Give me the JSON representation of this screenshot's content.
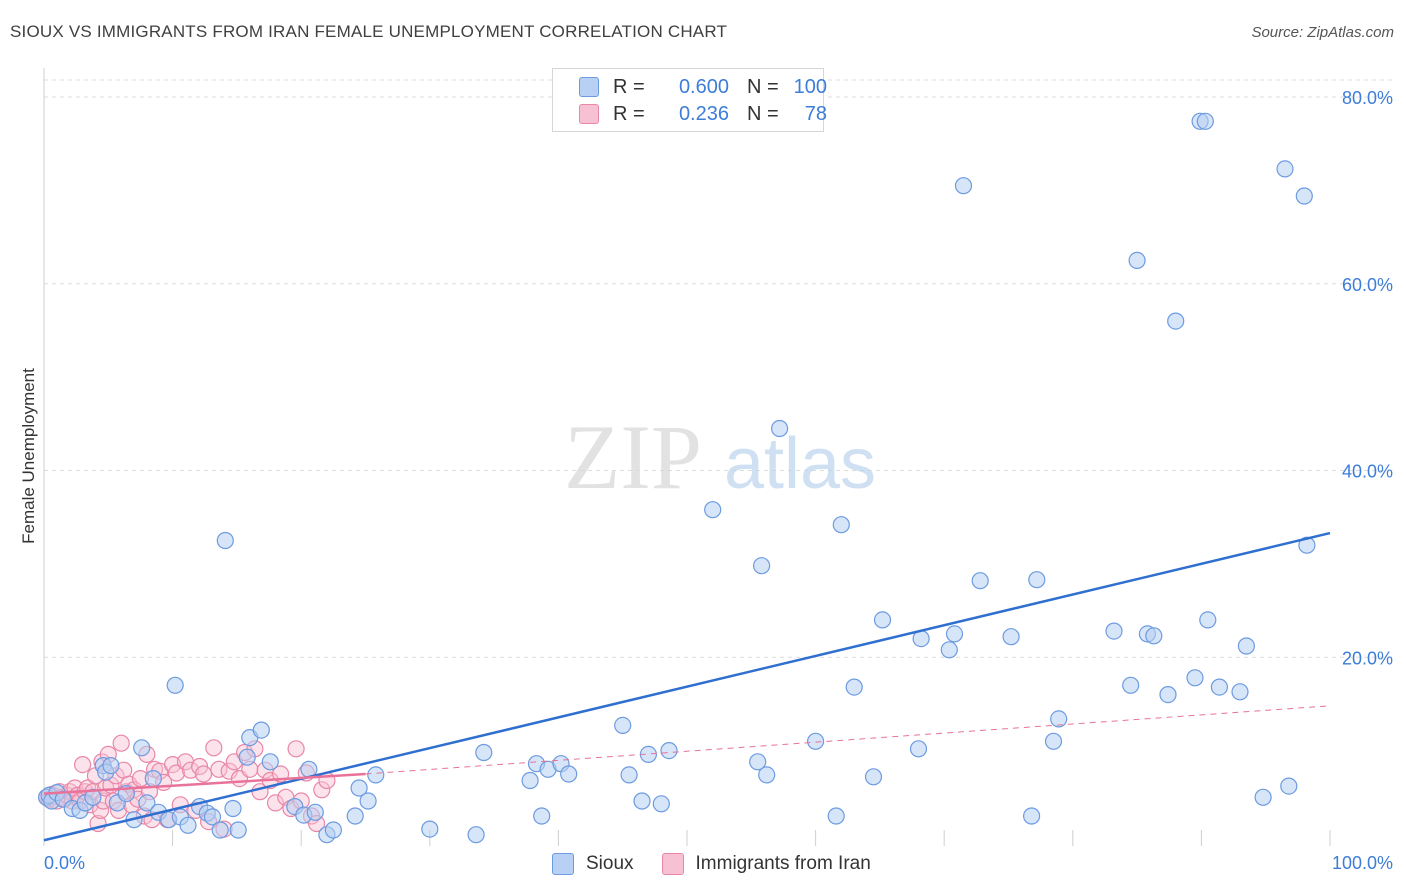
{
  "header": {
    "title": "SIOUX VS IMMIGRANTS FROM IRAN FEMALE UNEMPLOYMENT CORRELATION CHART",
    "source": "Source: ZipAtlas.com"
  },
  "watermark": {
    "zip": "ZIP",
    "atlas": "atlas"
  },
  "legend": {
    "r_label": "R =",
    "n_label": "N =",
    "series": [
      {
        "name": "Sioux",
        "r": "0.600",
        "n": "100",
        "fill": "#b7d0f3",
        "stroke": "#6c9be0"
      },
      {
        "name": "Immigrants from Iran",
        "r": "0.236",
        "n": "78",
        "fill": "#f8c0d3",
        "stroke": "#e887a7"
      }
    ]
  },
  "colors": {
    "blue_line": "#2f6fd0",
    "pink_line": "#e8729a",
    "axis_text": "#3d7dd8",
    "grid": "#dcdcdc"
  },
  "chart_data": {
    "type": "scatter",
    "title": "SIOUX VS IMMIGRANTS FROM IRAN FEMALE UNEMPLOYMENT CORRELATION CHART",
    "xlabel": "",
    "ylabel": "Female Unemployment",
    "xlim": [
      0,
      100
    ],
    "ylim": [
      0,
      80
    ],
    "x_tick_labels": [
      "0.0%",
      "100.0%"
    ],
    "y_ticks": [
      20,
      40,
      60,
      80
    ],
    "y_tick_labels": [
      "20.0%",
      "40.0%",
      "60.0%",
      "80.0%"
    ],
    "grid": true,
    "series": [
      {
        "name": "Sioux",
        "points": [
          [
            0.2,
            5.0
          ],
          [
            0.4,
            5.2
          ],
          [
            0.6,
            4.6
          ],
          [
            1.0,
            5.5
          ],
          [
            1.5,
            4.8
          ],
          [
            2.2,
            3.8
          ],
          [
            2.8,
            3.6
          ],
          [
            3.2,
            4.4
          ],
          [
            3.8,
            5.0
          ],
          [
            4.6,
            8.4
          ],
          [
            4.8,
            7.7
          ],
          [
            5.2,
            8.4
          ],
          [
            5.7,
            4.4
          ],
          [
            6.4,
            5.4
          ],
          [
            7.0,
            2.6
          ],
          [
            7.6,
            10.3
          ],
          [
            8.0,
            4.4
          ],
          [
            8.5,
            7.0
          ],
          [
            8.9,
            3.4
          ],
          [
            9.7,
            2.6
          ],
          [
            10.2,
            17.0
          ],
          [
            10.6,
            2.9
          ],
          [
            11.2,
            2.0
          ],
          [
            12.1,
            4.0
          ],
          [
            12.7,
            3.3
          ],
          [
            13.1,
            2.9
          ],
          [
            13.7,
            1.5
          ],
          [
            14.1,
            32.5
          ],
          [
            14.7,
            3.8
          ],
          [
            15.1,
            1.5
          ],
          [
            15.8,
            9.3
          ],
          [
            16.0,
            11.4
          ],
          [
            16.9,
            12.2
          ],
          [
            17.6,
            8.8
          ],
          [
            19.5,
            4.0
          ],
          [
            20.2,
            3.1
          ],
          [
            20.6,
            8.0
          ],
          [
            21.1,
            3.4
          ],
          [
            22.0,
            1.0
          ],
          [
            22.5,
            1.5
          ],
          [
            24.2,
            3.0
          ],
          [
            24.5,
            6.0
          ],
          [
            25.2,
            4.6
          ],
          [
            25.8,
            7.4
          ],
          [
            30.0,
            1.6
          ],
          [
            33.6,
            1.0
          ],
          [
            34.2,
            9.8
          ],
          [
            37.8,
            6.8
          ],
          [
            38.3,
            8.6
          ],
          [
            38.7,
            3.0
          ],
          [
            39.2,
            8.0
          ],
          [
            40.2,
            8.6
          ],
          [
            40.8,
            7.5
          ],
          [
            45.0,
            12.7
          ],
          [
            45.5,
            7.4
          ],
          [
            46.5,
            4.6
          ],
          [
            47.0,
            9.6
          ],
          [
            48.0,
            4.3
          ],
          [
            48.6,
            10.0
          ],
          [
            52.0,
            35.8
          ],
          [
            55.5,
            8.8
          ],
          [
            55.8,
            29.8
          ],
          [
            56.2,
            7.4
          ],
          [
            57.2,
            44.5
          ],
          [
            60.0,
            11.0
          ],
          [
            61.6,
            3.0
          ],
          [
            62.0,
            34.2
          ],
          [
            63.0,
            16.8
          ],
          [
            64.5,
            7.2
          ],
          [
            65.2,
            24.0
          ],
          [
            68.0,
            10.2
          ],
          [
            68.2,
            22.0
          ],
          [
            70.4,
            20.8
          ],
          [
            70.8,
            22.5
          ],
          [
            71.5,
            70.5
          ],
          [
            72.8,
            28.2
          ],
          [
            75.2,
            22.2
          ],
          [
            76.8,
            3.0
          ],
          [
            77.2,
            28.3
          ],
          [
            78.5,
            11.0
          ],
          [
            78.9,
            13.4
          ],
          [
            83.2,
            22.8
          ],
          [
            84.5,
            17.0
          ],
          [
            85.0,
            62.5
          ],
          [
            85.8,
            22.5
          ],
          [
            86.3,
            22.3
          ],
          [
            87.4,
            16.0
          ],
          [
            88.0,
            56.0
          ],
          [
            89.5,
            17.8
          ],
          [
            89.9,
            77.4
          ],
          [
            90.3,
            77.4
          ],
          [
            90.5,
            24.0
          ],
          [
            91.4,
            16.8
          ],
          [
            93.0,
            16.3
          ],
          [
            93.5,
            21.2
          ],
          [
            94.8,
            5.0
          ],
          [
            96.5,
            72.3
          ],
          [
            96.8,
            6.2
          ],
          [
            98.0,
            69.4
          ],
          [
            98.2,
            32.0
          ]
        ]
      },
      {
        "name": "Immigrants from Iran",
        "points": [
          [
            0.2,
            5.0
          ],
          [
            0.4,
            4.8
          ],
          [
            0.6,
            5.3
          ],
          [
            0.8,
            5.1
          ],
          [
            1.0,
            4.6
          ],
          [
            1.2,
            5.6
          ],
          [
            1.4,
            5.0
          ],
          [
            1.6,
            4.8
          ],
          [
            1.8,
            5.2
          ],
          [
            2.0,
            5.6
          ],
          [
            2.2,
            4.6
          ],
          [
            2.4,
            6.0
          ],
          [
            2.6,
            5.2
          ],
          [
            2.8,
            4.6
          ],
          [
            3.0,
            8.5
          ],
          [
            3.2,
            5.6
          ],
          [
            3.4,
            6.0
          ],
          [
            3.6,
            4.2
          ],
          [
            3.8,
            5.6
          ],
          [
            4.0,
            7.3
          ],
          [
            4.2,
            2.2
          ],
          [
            4.4,
            3.6
          ],
          [
            4.5,
            8.8
          ],
          [
            4.6,
            4.6
          ],
          [
            4.8,
            6.0
          ],
          [
            5.0,
            9.6
          ],
          [
            5.2,
            6.3
          ],
          [
            5.4,
            4.6
          ],
          [
            5.6,
            7.3
          ],
          [
            5.8,
            3.6
          ],
          [
            6.0,
            10.8
          ],
          [
            6.2,
            7.9
          ],
          [
            6.4,
            5.6
          ],
          [
            6.6,
            6.4
          ],
          [
            6.8,
            4.2
          ],
          [
            7.0,
            5.8
          ],
          [
            7.3,
            4.8
          ],
          [
            7.5,
            7.0
          ],
          [
            7.8,
            3.0
          ],
          [
            8.0,
            9.6
          ],
          [
            8.2,
            5.6
          ],
          [
            8.4,
            2.6
          ],
          [
            8.6,
            8.0
          ],
          [
            9.0,
            7.8
          ],
          [
            9.3,
            6.6
          ],
          [
            9.6,
            2.6
          ],
          [
            10.0,
            8.5
          ],
          [
            10.3,
            7.6
          ],
          [
            10.6,
            4.2
          ],
          [
            11.0,
            8.8
          ],
          [
            11.4,
            7.9
          ],
          [
            11.8,
            3.6
          ],
          [
            12.1,
            8.3
          ],
          [
            12.4,
            7.5
          ],
          [
            12.8,
            2.4
          ],
          [
            13.2,
            10.3
          ],
          [
            13.6,
            8.0
          ],
          [
            14.0,
            1.6
          ],
          [
            14.4,
            7.8
          ],
          [
            14.8,
            8.8
          ],
          [
            15.2,
            7.0
          ],
          [
            15.6,
            9.8
          ],
          [
            16.0,
            8.0
          ],
          [
            16.4,
            10.2
          ],
          [
            16.8,
            5.6
          ],
          [
            17.2,
            7.9
          ],
          [
            17.6,
            6.8
          ],
          [
            18.0,
            4.4
          ],
          [
            18.4,
            7.5
          ],
          [
            18.8,
            5.0
          ],
          [
            19.2,
            3.8
          ],
          [
            19.6,
            10.2
          ],
          [
            20.0,
            4.6
          ],
          [
            20.4,
            7.6
          ],
          [
            20.8,
            3.0
          ],
          [
            21.2,
            2.2
          ],
          [
            21.6,
            5.8
          ],
          [
            22.0,
            6.8
          ]
        ]
      }
    ],
    "trend_lines": [
      {
        "series": "Sioux",
        "style": "solid",
        "from": [
          0,
          0.4
        ],
        "to": [
          100,
          33.3
        ]
      },
      {
        "series": "Immigrants from Iran",
        "style": "solid",
        "from": [
          0,
          5.4
        ],
        "to": [
          25,
          7.5
        ]
      },
      {
        "series": "Immigrants from Iran",
        "style": "dashed",
        "from": [
          25,
          7.5
        ],
        "to": [
          100,
          14.8
        ]
      }
    ]
  }
}
